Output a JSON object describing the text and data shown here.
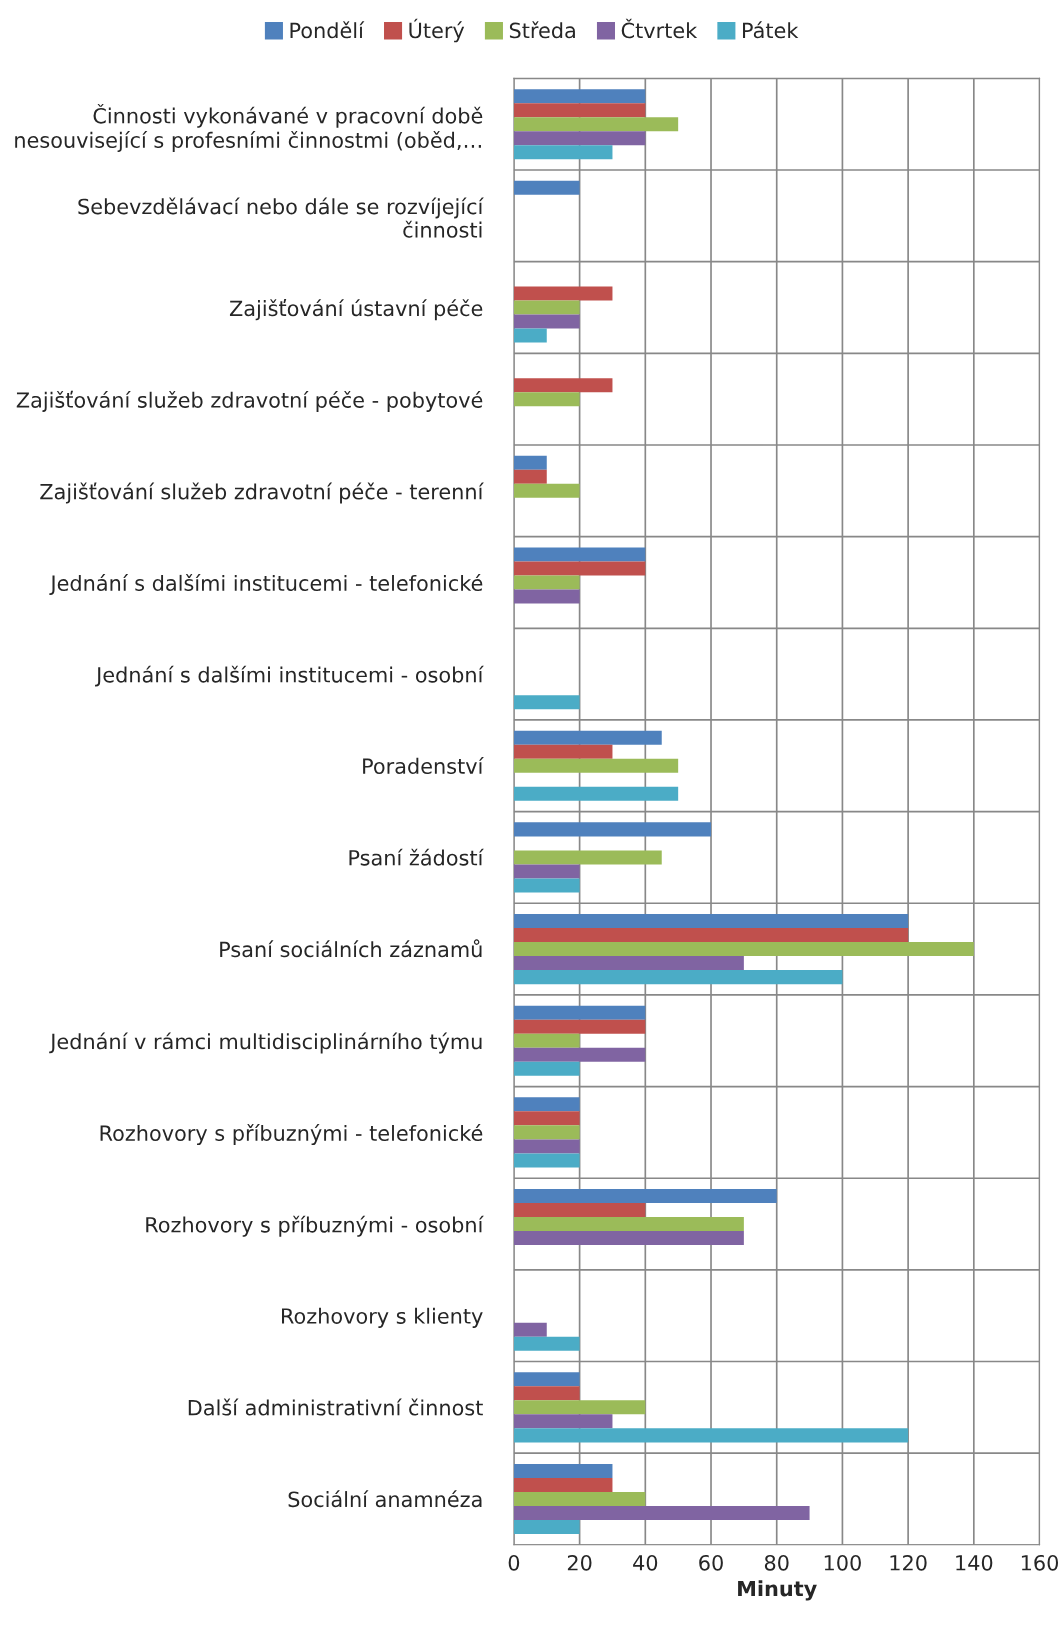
{
  "chart_data": {
    "type": "bar",
    "orientation": "horizontal",
    "xlabel": "Minuty",
    "legend": "top",
    "grid": true,
    "categories": [
      "Činnosti vykonávané v pracovní době\nnesouvisející s profesními činnostmi (oběd,…",
      "Sebevzdělávací nebo dále se rozvíjející\nčinnosti",
      "Zajišťování ústavní péče",
      "Zajišťování služeb zdravotní péče - pobytové",
      "Zajišťování služeb zdravotní péče - terenní",
      "Jednání s dalšími institucemi - telefonické",
      "Jednání s dalšími institucemi - osobní",
      "Poradenství",
      "Psaní žádostí",
      "Psaní sociálních záznamů",
      "Jednání v rámci multidisciplinárního týmu",
      "Rozhovory s příbuznými - telefonické",
      "Rozhovory s příbuznými - osobní",
      "Rozhovory s klienty",
      "Další administrativní činnost",
      "Sociální anamnéza"
    ],
    "series": [
      {
        "name": "Pondělí",
        "color": "#4f81bd",
        "values": [
          40,
          20,
          null,
          null,
          10,
          40,
          null,
          45,
          60,
          120,
          40,
          20,
          80,
          null,
          20,
          30
        ]
      },
      {
        "name": "Úterý",
        "color": "#c0504d",
        "values": [
          40,
          null,
          30,
          30,
          10,
          40,
          null,
          30,
          null,
          120,
          40,
          20,
          40,
          null,
          20,
          30
        ]
      },
      {
        "name": "Středa",
        "color": "#9bbb59",
        "values": [
          50,
          null,
          20,
          20,
          20,
          20,
          null,
          50,
          45,
          140,
          20,
          20,
          70,
          null,
          40,
          40
        ]
      },
      {
        "name": "Čtvrtek",
        "color": "#8064a2",
        "values": [
          40,
          null,
          20,
          null,
          null,
          20,
          null,
          null,
          20,
          70,
          40,
          20,
          70,
          10,
          30,
          90
        ]
      },
      {
        "name": "Pátek",
        "color": "#4bacc6",
        "values": [
          30,
          null,
          10,
          null,
          null,
          null,
          20,
          50,
          20,
          100,
          20,
          20,
          null,
          20,
          120,
          20
        ]
      }
    ],
    "xlim": [
      0,
      160
    ],
    "xticks": [
      0,
      20,
      40,
      60,
      80,
      100,
      120,
      140,
      160
    ]
  }
}
